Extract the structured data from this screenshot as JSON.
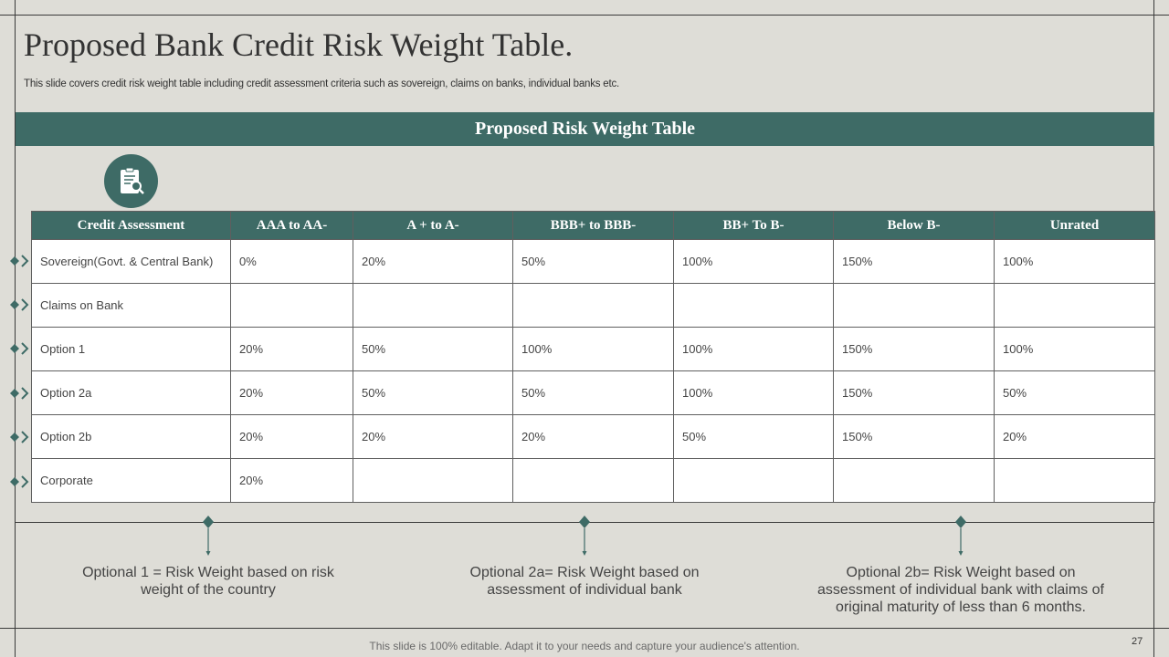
{
  "title": "Proposed Bank Credit Risk Weight Table.",
  "subtitle": "This slide covers credit risk weight table including credit assessment criteria such as sovereign, claims on banks, individual banks etc.",
  "banner": "Proposed Risk Weight Table",
  "icon": "clipboard-search-icon",
  "table": {
    "headers": [
      "Credit Assessment",
      "AAA to AA-",
      "A + to A-",
      "BBB+ to BBB-",
      "BB+ To B-",
      "Below B-",
      "Unrated"
    ],
    "rows": [
      [
        "Sovereign(Govt.  & Central Bank)",
        "0%",
        "20%",
        "50%",
        "100%",
        "150%",
        "100%"
      ],
      [
        "Claims on Bank",
        "",
        "",
        "",
        "",
        "",
        ""
      ],
      [
        "Option 1",
        "20%",
        "50%",
        "100%",
        "100%",
        "150%",
        "100%"
      ],
      [
        "Option 2a",
        "20%",
        "50%",
        "50%",
        "100%",
        "150%",
        "50%"
      ],
      [
        "Option 2b",
        "20%",
        "20%",
        "20%",
        "50%",
        "150%",
        "20%"
      ],
      [
        "Corporate",
        "20%",
        "",
        "",
        "",
        "",
        ""
      ]
    ]
  },
  "notes": [
    "Optional 1 = Risk Weight based on risk weight of the country",
    "Optional 2a= Risk Weight based on assessment of individual bank",
    "Optional 2b= Risk Weight based on assessment of individual bank with claims of original maturity  of less than  6 months."
  ],
  "footer": "This slide is 100% editable. Adapt it to your needs and capture your audience's attention.",
  "page_number": "27",
  "colors": {
    "accent": "#3e6b66",
    "background": "#deddd7"
  }
}
